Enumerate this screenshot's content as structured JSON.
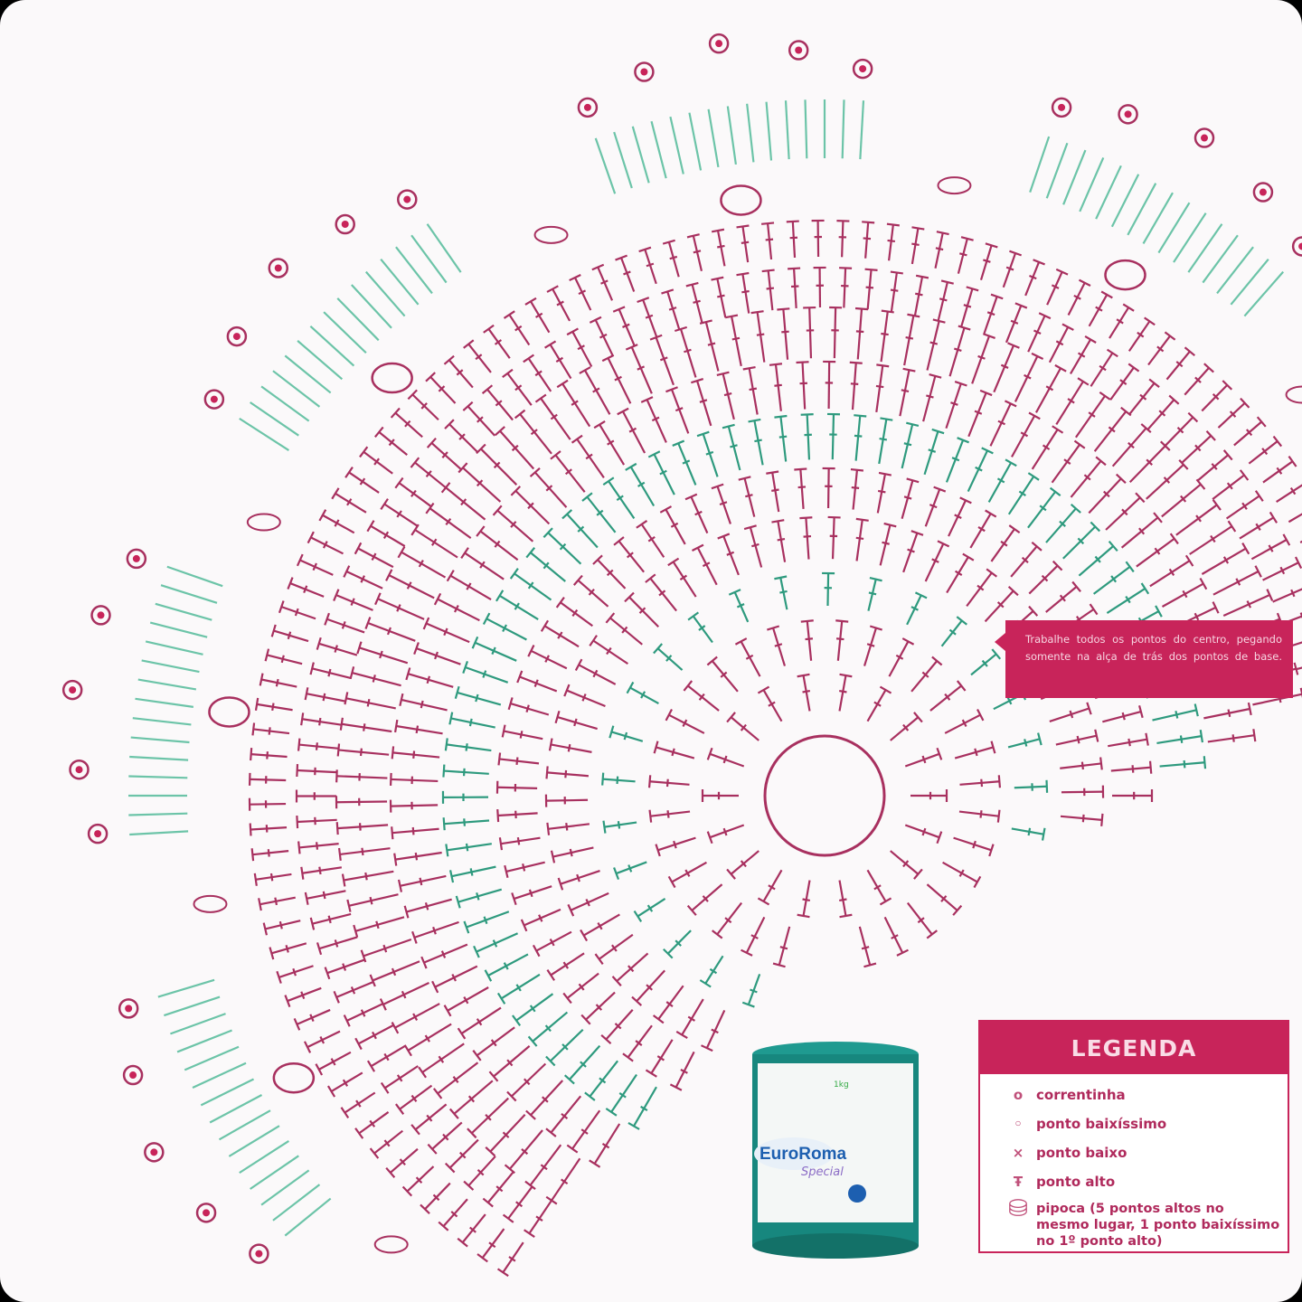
{
  "callout": {
    "text": "Trabalhe todos os pontos do centro, pegando somente na alça de trás dos pontos de base."
  },
  "legend": {
    "title": "LEGENDA",
    "items": [
      {
        "icon": "chain-oval-icon",
        "label": "correntinha"
      },
      {
        "icon": "slip-stitch-dot-icon",
        "label": "ponto baixíssimo"
      },
      {
        "icon": "single-crochet-x-icon",
        "label": "ponto baixo"
      },
      {
        "icon": "double-crochet-t-icon",
        "label": "ponto alto"
      },
      {
        "icon": "popcorn-icon",
        "label": "pipoca (5 pontos altos no mesmo lugar, 1 ponto baixíssimo no 1º ponto alto)"
      }
    ]
  },
  "product": {
    "brand": "EuroRoma",
    "sub": "Special",
    "weight": "1kg"
  },
  "colors": {
    "pink": "#a8305f",
    "teal": "#2e9a7e",
    "light_teal": "#6cc4a8",
    "accent": "#c8245a",
    "yarn": "#1a8a82"
  }
}
